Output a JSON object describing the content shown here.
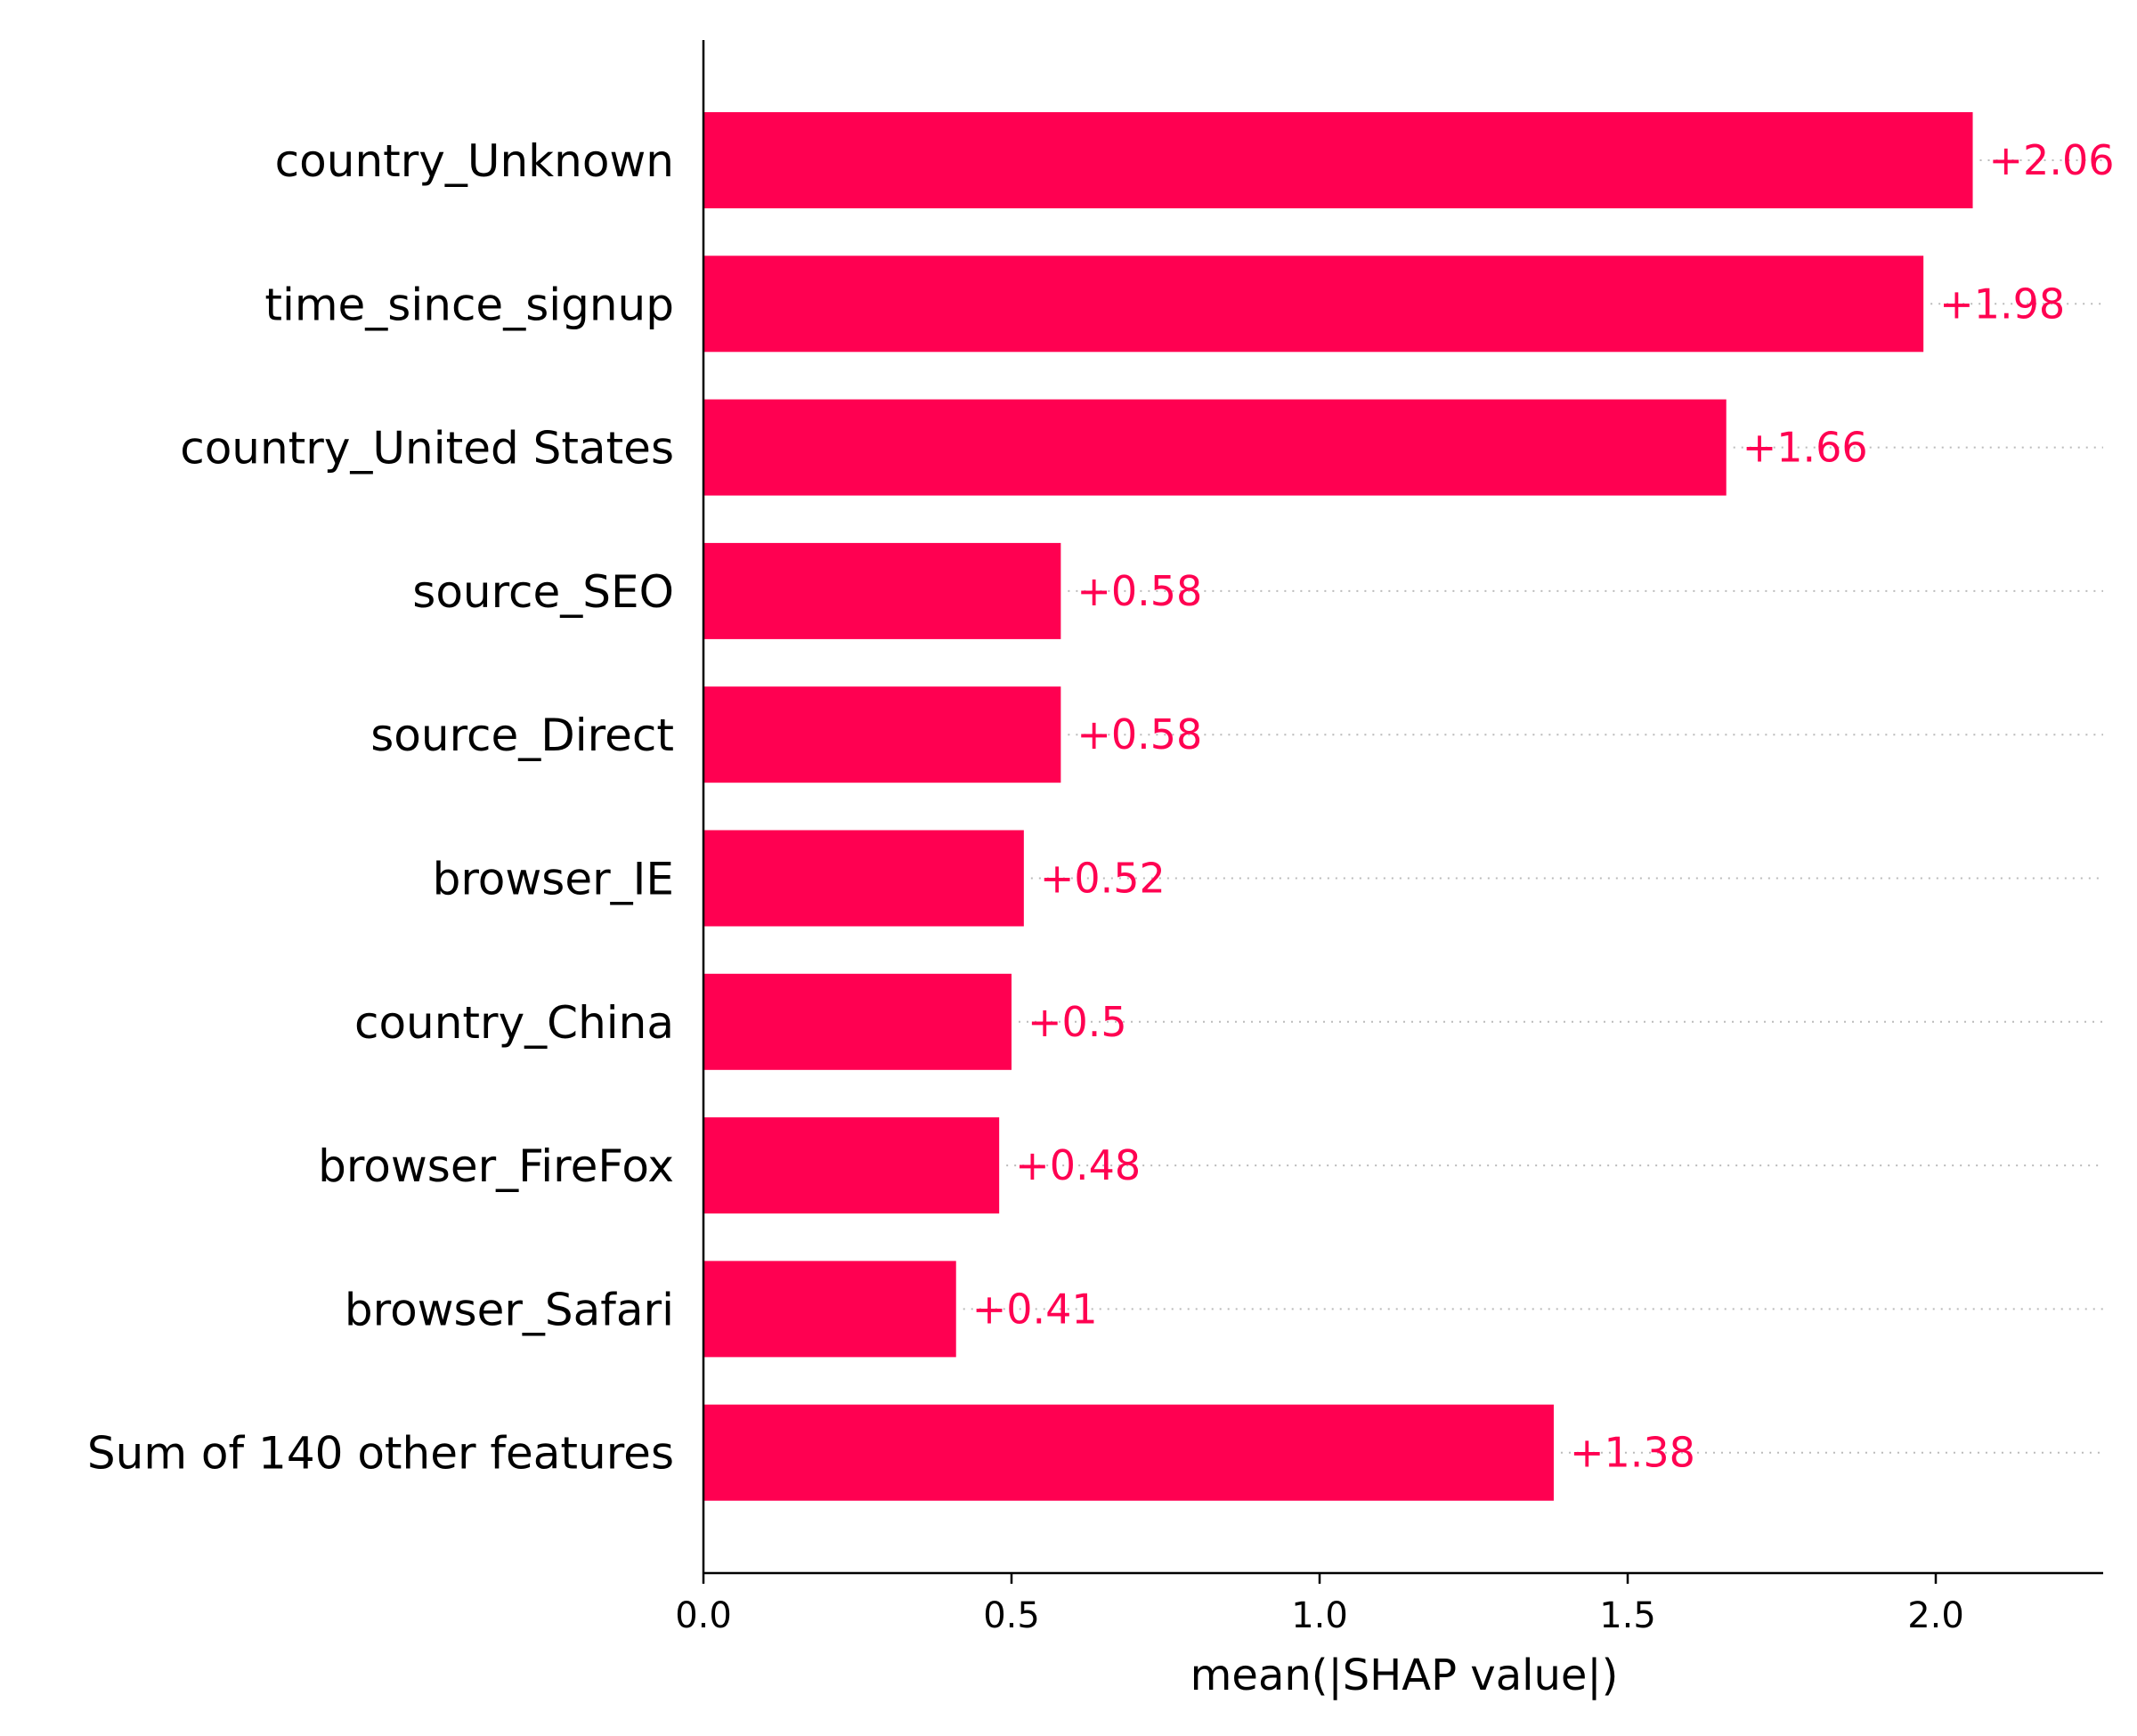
{
  "chart_data": {
    "type": "bar",
    "orientation": "horizontal",
    "categories": [
      "country_Unknown",
      "time_since_signup",
      "country_United States",
      "source_SEO",
      "source_Direct",
      "browser_IE",
      "country_China",
      "browser_FireFox",
      "browser_Safari",
      "Sum of 140 other features"
    ],
    "values": [
      2.06,
      1.98,
      1.66,
      0.58,
      0.58,
      0.52,
      0.5,
      0.48,
      0.41,
      1.38
    ],
    "value_labels": [
      "+2.06",
      "+1.98",
      "+1.66",
      "+0.58",
      "+0.58",
      "+0.52",
      "+0.5",
      "+0.48",
      "+0.41",
      "+1.38"
    ],
    "xlabel": "mean(|SHAP value|)",
    "ylabel": "",
    "title": "",
    "xlim": [
      0,
      2.27
    ],
    "xticks": [
      0.0,
      0.5,
      1.0,
      1.5,
      2.0
    ],
    "xtick_labels": [
      "0.0",
      "0.5",
      "1.0",
      "1.5",
      "2.0"
    ],
    "grid": "dotted guide lines per bar",
    "bar_color": "#ff0051",
    "label_color": "#ff0051"
  }
}
